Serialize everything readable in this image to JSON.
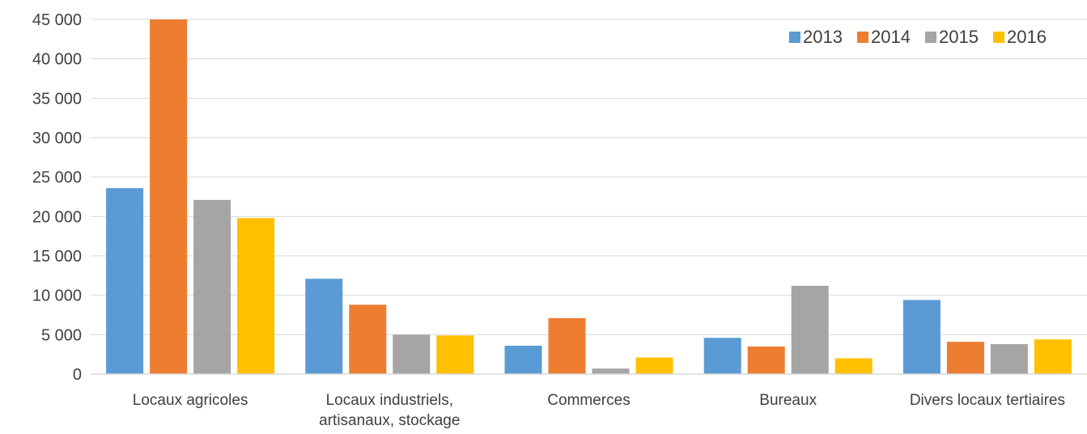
{
  "chart_data": {
    "type": "bar",
    "title": "",
    "xlabel": "",
    "ylabel": "",
    "ylim": [
      0,
      45000
    ],
    "yticks": [
      "0",
      "5 000",
      "10 000",
      "15 000",
      "20 000",
      "25 000",
      "30 000",
      "35 000",
      "40 000",
      "45 000"
    ],
    "ytick_values": [
      0,
      5000,
      10000,
      15000,
      20000,
      25000,
      30000,
      35000,
      40000,
      45000
    ],
    "grid": true,
    "legend_position": "top-right",
    "categories": [
      [
        "Locaux agricoles"
      ],
      [
        "Locaux industriels,",
        "artisanaux, stockage"
      ],
      [
        "Commerces"
      ],
      [
        "Bureaux"
      ],
      [
        "Divers locaux tertiaires"
      ]
    ],
    "series": [
      {
        "name": "2013",
        "color": "#5B9BD5",
        "values": [
          23600,
          12100,
          3600,
          4600,
          9400
        ]
      },
      {
        "name": "2014",
        "color": "#ED7D31",
        "values": [
          45000,
          8800,
          7100,
          3500,
          4100
        ]
      },
      {
        "name": "2015",
        "color": "#A5A5A5",
        "values": [
          22100,
          5000,
          700,
          11200,
          3800
        ]
      },
      {
        "name": "2016",
        "color": "#FFC000",
        "values": [
          19800,
          4900,
          2100,
          2000,
          4400
        ]
      }
    ]
  }
}
